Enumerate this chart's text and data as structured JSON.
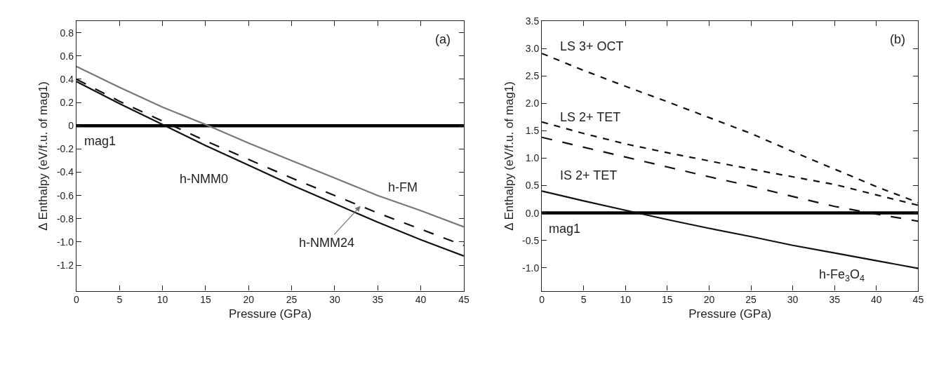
{
  "chart_data": [
    {
      "type": "line",
      "xlabel": "Pressure (GPa)",
      "ylabel": "Δ Enthalpy (eV/f.u. of mag1)",
      "x": [
        0,
        5,
        10,
        15,
        20,
        25,
        30,
        35,
        40,
        45
      ],
      "xlim": [
        0,
        45
      ],
      "xticks": [
        0,
        5,
        10,
        15,
        20,
        25,
        30,
        35,
        40,
        45
      ],
      "ylim": [
        -1.42,
        0.9
      ],
      "yticks": [
        0.8,
        0.6,
        0.4,
        0.2,
        0,
        -0.2,
        -0.4,
        -0.6,
        -0.8,
        {
          "value": -1,
          "label": "-1.0"
        },
        -1.2
      ],
      "grid": false,
      "legend": false,
      "series": [
        {
          "name": "mag1",
          "color": "#000000",
          "line_style": "solid",
          "values": [
            0,
            0,
            0,
            0,
            0,
            0,
            0,
            0,
            0,
            0
          ]
        },
        {
          "name": "h-FM",
          "color": "#777777",
          "line_style": "solid",
          "values": [
            0.51,
            0.33,
            0.16,
            0.01,
            -0.15,
            -0.3,
            -0.45,
            -0.6,
            -0.73,
            -0.87
          ]
        },
        {
          "color": "#111111",
          "line_style": "dashed",
          "values": [
            0.4,
            0.21,
            0.04,
            -0.13,
            -0.29,
            -0.45,
            -0.6,
            -0.75,
            -0.89,
            -1.03
          ]
        },
        {
          "name": "h-NMM0",
          "color": "#111111",
          "line_style": "solid",
          "values": [
            0.38,
            0.19,
            0.01,
            -0.17,
            -0.34,
            -0.51,
            -0.67,
            -0.83,
            -0.98,
            -1.12
          ]
        }
      ],
      "annotations": [
        "(a)",
        {
          "text": "h-NMM24",
          "x": 33,
          "y": -0.69
        }
      ]
    },
    {
      "type": "line",
      "xlabel": "Pressure (GPa)",
      "ylabel": "Δ Enthalpy (eV/f.u. of mag1)",
      "x": [
        0,
        5,
        10,
        15,
        20,
        25,
        30,
        35,
        40,
        45
      ],
      "xlim": [
        0,
        45
      ],
      "xticks": [
        0,
        5,
        10,
        15,
        20,
        25,
        30,
        35,
        40,
        45
      ],
      "ylim": [
        -1.42,
        3.5
      ],
      "yticks": [
        3.5,
        {
          "value": 3,
          "label": "3.0"
        },
        2.5,
        {
          "value": 2,
          "label": "2.0"
        },
        1.5,
        {
          "value": 1,
          "label": "1.0"
        },
        0.5,
        {
          "value": 0,
          "label": "0.0"
        },
        -0.5,
        {
          "value": -1,
          "label": "-1.0"
        }
      ],
      "grid": false,
      "legend": false,
      "series": [
        {
          "name": "mag1",
          "color": "#000000",
          "line_style": "solid",
          "values": [
            0,
            0,
            0,
            0,
            0,
            0,
            0,
            0,
            0,
            0
          ]
        },
        {
          "name": "LS 3+ OCT",
          "color": "#111111",
          "line_style": "dotted",
          "values": [
            2.91,
            2.6,
            2.31,
            2.03,
            1.74,
            1.45,
            1.12,
            0.8,
            0.48,
            0.19
          ]
        },
        {
          "name": "LS 2+ TET",
          "color": "#111111",
          "line_style": "dotted",
          "values": [
            1.66,
            1.45,
            1.26,
            1.1,
            0.95,
            0.8,
            0.66,
            0.52,
            0.33,
            0.14
          ]
        },
        {
          "name": "IS 2+ TET",
          "color": "#111111",
          "line_style": "dashed",
          "values": [
            1.38,
            1.2,
            1.02,
            0.84,
            0.66,
            0.49,
            0.3,
            0.12,
            -0.02,
            -0.15
          ]
        },
        {
          "name": "h-Fe$_{3}$O$_{4}$",
          "color": "#111111",
          "line_style": "solid",
          "values": [
            0.4,
            0.22,
            0.05,
            -0.12,
            -0.28,
            -0.43,
            -0.59,
            -0.73,
            -0.87,
            -1.01
          ]
        }
      ],
      "annotations": [
        "(b)"
      ]
    }
  ]
}
